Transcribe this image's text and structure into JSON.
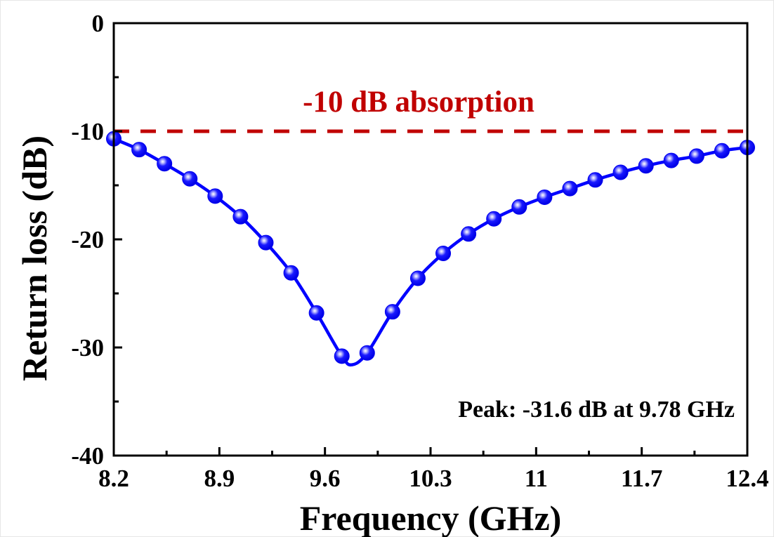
{
  "chart_data": {
    "type": "line",
    "title": "",
    "xlabel": "Frequency (GHz)",
    "ylabel": "Return loss (dB)",
    "xlim": [
      8.2,
      12.4
    ],
    "ylim": [
      -40,
      0
    ],
    "x_ticks": [
      8.2,
      8.9,
      9.6,
      10.3,
      11,
      11.7,
      12.4
    ],
    "x_tick_labels": [
      "8.2",
      "8.9",
      "9.6",
      "10.3",
      "11",
      "11.7",
      "12.4"
    ],
    "x_minor_ticks": [
      8.55,
      9.25,
      9.95,
      10.65,
      11.35,
      12.05
    ],
    "y_ticks": [
      0,
      -10,
      -20,
      -30,
      -40
    ],
    "y_tick_labels": [
      "0",
      "-10",
      "-20",
      "-30",
      "-40"
    ],
    "y_minor_ticks": [
      -5,
      -15,
      -25,
      -35
    ],
    "grid": false,
    "legend": "none",
    "series": [
      {
        "name": "Return loss",
        "color": "#0000FF",
        "marker": "sphere",
        "x": [
          8.2,
          8.368,
          8.536,
          8.704,
          8.872,
          9.04,
          9.208,
          9.376,
          9.544,
          9.712,
          9.88,
          10.048,
          10.216,
          10.384,
          10.552,
          10.72,
          10.888,
          11.056,
          11.224,
          11.392,
          11.56,
          11.728,
          11.896,
          12.064,
          12.232,
          12.4
        ],
        "y": [
          -10.7,
          -11.7,
          -13.0,
          -14.4,
          -16.0,
          -17.9,
          -20.3,
          -23.1,
          -26.8,
          -30.8,
          -30.5,
          -26.7,
          -23.6,
          -21.3,
          -19.5,
          -18.1,
          -17.0,
          -16.1,
          -15.3,
          -14.5,
          -13.8,
          -13.2,
          -12.7,
          -12.3,
          -11.8,
          -11.5
        ]
      }
    ],
    "curve_minimum": {
      "x": 9.78,
      "y": -31.6
    },
    "reference_line": {
      "y": -10,
      "style": "dashed",
      "color": "#C00000",
      "label": "-10 dB absorption"
    },
    "annotations": [
      {
        "text": "Peak: -31.6 dB at 9.78 GHz",
        "position": "bottom-right"
      }
    ]
  }
}
